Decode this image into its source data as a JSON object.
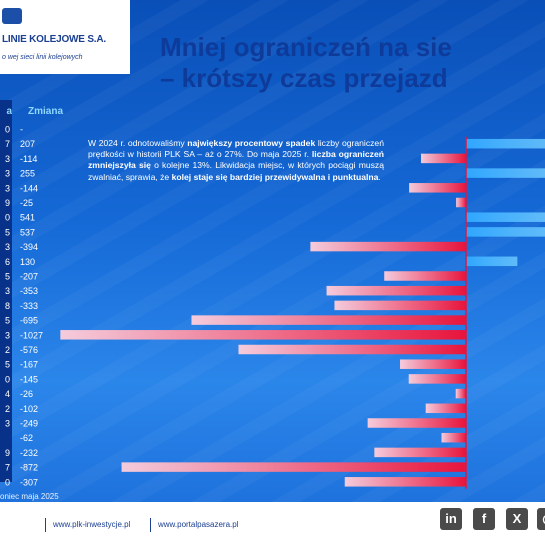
{
  "header": {
    "logo_name": "LINIE KOLEJOWE S.A.",
    "logo_tagline": "o wej sieci linii kolejowych"
  },
  "title": {
    "line1": "Mniej ograniczeń na sie",
    "line2": "– krótszy czas przejazd"
  },
  "table": {
    "col_name_head": "a",
    "col_change_head": "Zmiana"
  },
  "description": {
    "p1": "W 2024 r. odnotowaliśmy ",
    "b1": "największy procentowy spadek",
    "p2": " liczby ograniczeń prędkości w historii PLK SA – aż o 27%. Do maja 2025 r. ",
    "b2": "liczba ograniczeń zmniejszyła się",
    "p3": " o kolejne 13%. Likwidacja miejsc, w których pociągi muszą zwalniać, sprawia, że ",
    "b3": "kolej staje się bardziej przewidywalna i punktualna",
    "p4": "."
  },
  "chart_data": {
    "type": "bar",
    "orientation": "horizontal",
    "series": [
      {
        "name": "Zmiana",
        "values": [
          null,
          207,
          -114,
          255,
          -144,
          -25,
          541,
          537,
          -394,
          130,
          -207,
          -353,
          -333,
          -695,
          -1027,
          -576,
          -167,
          -145,
          -26,
          -102,
          -249,
          -62,
          -232,
          -872,
          -307
        ]
      }
    ],
    "value_labels": [
      "-",
      "207",
      "-114",
      "255",
      "-144",
      "-25",
      "541",
      "537",
      "-394",
      "130",
      "-207",
      "-353",
      "-333",
      "-695",
      "-1027",
      "-576",
      "-167",
      "-145",
      "-26",
      "-102",
      "-249",
      "-62",
      "-232",
      "-872",
      "-307"
    ],
    "row_label_fragments": [
      "0",
      "7",
      "3",
      "3",
      "3",
      "9",
      "0",
      "5",
      "3",
      "6",
      "5",
      "3",
      "8",
      "5",
      "3",
      "2",
      "5",
      "0",
      "4",
      "2",
      "3",
      "",
      "9",
      "7",
      "0"
    ],
    "colors": {
      "positive": "#6cc8ff",
      "negative": "#e8143c",
      "zero_line": "#e8143c"
    }
  },
  "footnote": "oniec maja 2025",
  "footer": {
    "link1": "www.plk-inwestycje.pl",
    "link2": "www.portalpasazera.pl",
    "social": [
      {
        "icon": "linkedin-icon",
        "glyph": "in"
      },
      {
        "icon": "facebook-icon",
        "glyph": "f"
      },
      {
        "icon": "x-icon",
        "glyph": "X"
      },
      {
        "icon": "instagram-icon",
        "glyph": "◎"
      }
    ]
  }
}
